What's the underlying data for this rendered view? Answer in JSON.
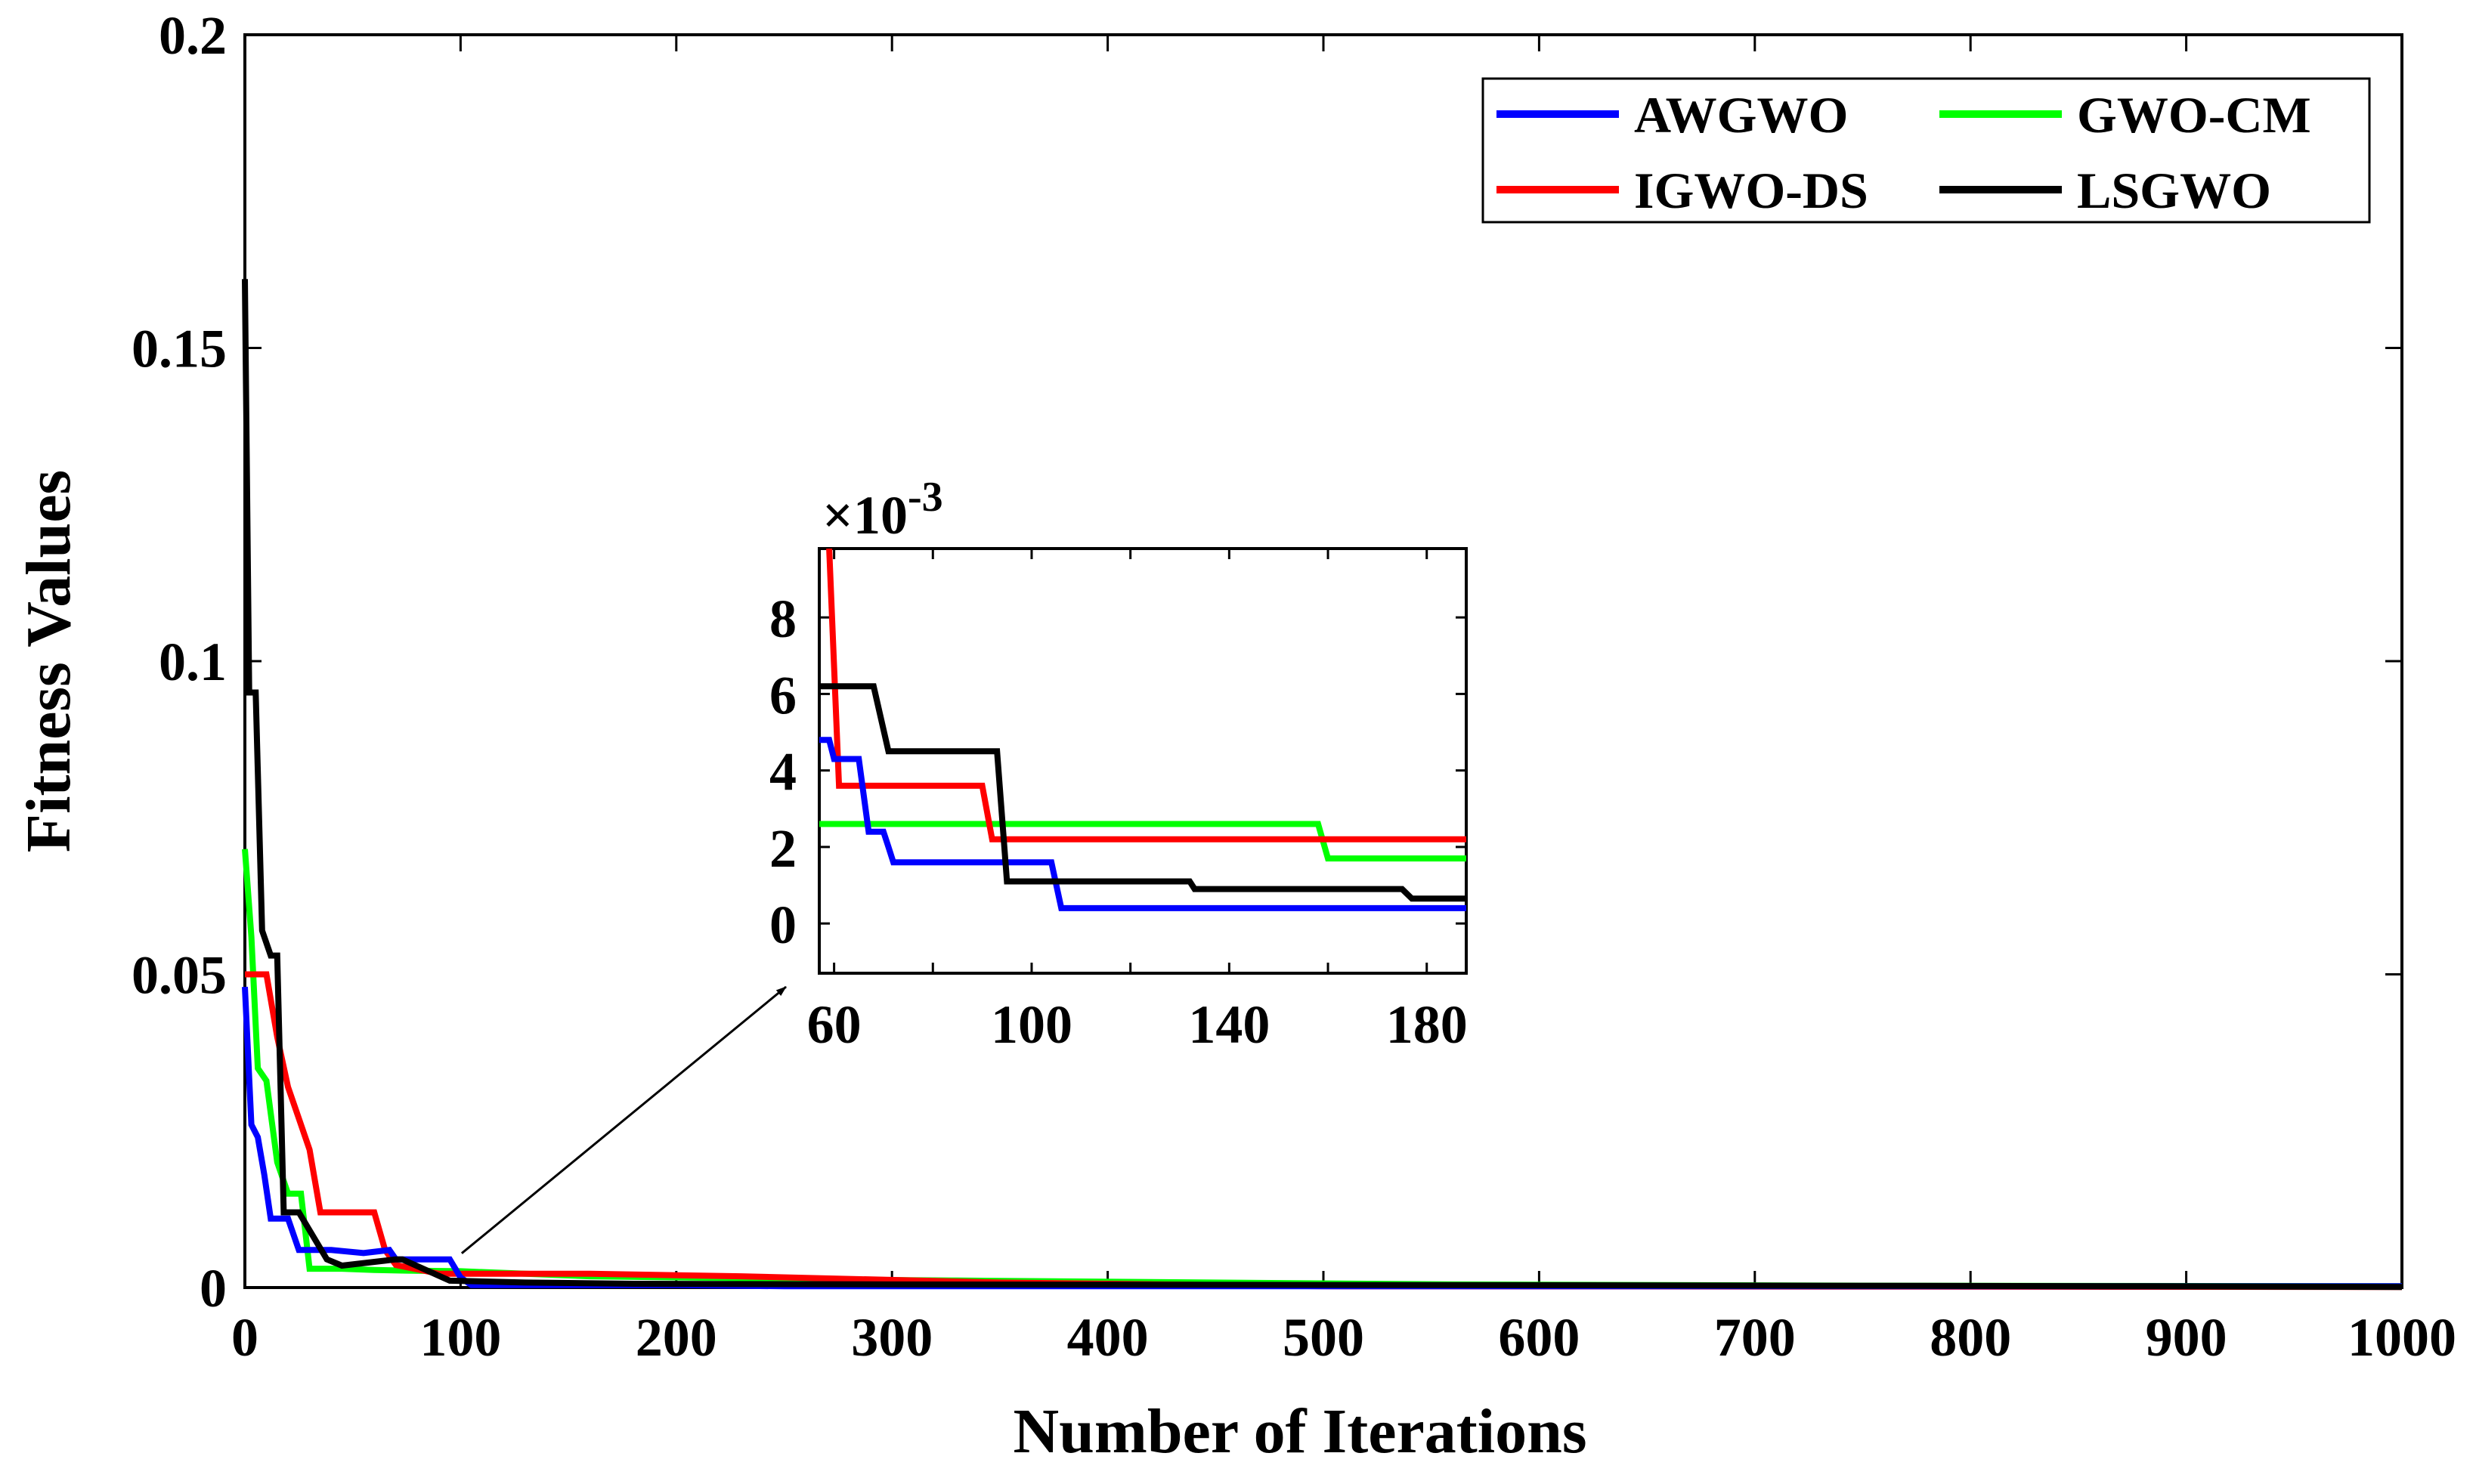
{
  "chart_data": [
    {
      "type": "line",
      "xlabel": "Number of Iterations",
      "ylabel": "Fitness Values",
      "xlim": [
        0,
        1000
      ],
      "ylim": [
        0,
        0.2
      ],
      "x_ticks": [
        0,
        100,
        200,
        300,
        400,
        500,
        600,
        700,
        800,
        900,
        1000
      ],
      "x_tick_labels": [
        "0",
        "100",
        "200",
        "300",
        "400",
        "500",
        "600",
        "700",
        "800",
        "900",
        "1000"
      ],
      "y_ticks": [
        0,
        0.05,
        0.1,
        0.15,
        0.2
      ],
      "y_tick_labels": [
        "0",
        "0.05",
        "0.1",
        "0.15",
        "0.2"
      ],
      "legend_position": "top-right",
      "legend_columns": 2,
      "series": [
        {
          "name": "AWGWO",
          "color": "#0000ff",
          "x": [
            0,
            3,
            6,
            9,
            12,
            20,
            25,
            30,
            40,
            55,
            67,
            70,
            95,
            100,
            105,
            200,
            250,
            1000
          ],
          "y": [
            0.048,
            0.026,
            0.024,
            0.018,
            0.011,
            0.011,
            0.006,
            0.006,
            0.006,
            0.0055,
            0.006,
            0.0045,
            0.0045,
            0.0016,
            0.0004,
            0.0004,
            0.0002,
            0.0002
          ]
        },
        {
          "name": "GWO-CM",
          "color": "#00ff00",
          "x": [
            0,
            3,
            6,
            10,
            15,
            20,
            26,
            30,
            45,
            60,
            75,
            100,
            160,
            300,
            560,
            750,
            1000
          ],
          "y": [
            0.07,
            0.056,
            0.035,
            0.033,
            0.02,
            0.015,
            0.015,
            0.003,
            0.003,
            0.0028,
            0.0027,
            0.0026,
            0.0018,
            0.0012,
            0.0005,
            0.0003,
            0.0002
          ]
        },
        {
          "name": "IGWO-DS",
          "color": "#ff0000",
          "x": [
            0,
            5,
            10,
            15,
            20,
            25,
            30,
            35,
            60,
            65,
            70,
            90,
            160,
            230,
            350,
            500,
            1000
          ],
          "y": [
            0.05,
            0.05,
            0.05,
            0.04,
            0.032,
            0.027,
            0.022,
            0.012,
            0.012,
            0.006,
            0.0036,
            0.0022,
            0.0022,
            0.0018,
            0.0008,
            0.0002,
            0.0001
          ]
        },
        {
          "name": "LSGWO",
          "color": "#000000",
          "x": [
            0,
            2,
            5,
            8,
            12,
            15,
            18,
            25,
            38,
            45,
            70,
            73,
            95,
            130,
            180,
            300,
            550,
            880,
            1000
          ],
          "y": [
            0.161,
            0.095,
            0.095,
            0.057,
            0.053,
            0.053,
            0.012,
            0.012,
            0.0045,
            0.0035,
            0.0045,
            0.0045,
            0.0011,
            0.0008,
            0.0006,
            0.0005,
            0.0004,
            0.0002,
            0.0001
          ]
        }
      ]
    },
    {
      "type": "line",
      "role": "inset-zoom",
      "y_multiplier": "×10",
      "y_multiplier_exponent": "-3",
      "xlim": [
        57,
        188
      ],
      "ylim": [
        -1.3,
        9.8
      ],
      "x_ticks": [
        60,
        100,
        140,
        180
      ],
      "x_tick_labels": [
        "60",
        "100",
        "140",
        "180"
      ],
      "x_minor_ticks": [
        80,
        120,
        160
      ],
      "y_ticks": [
        0,
        2,
        4,
        6,
        8
      ],
      "y_tick_labels": [
        "0",
        "2",
        "4",
        "6",
        "8"
      ],
      "zoom_source": {
        "x": 90,
        "y": 0.0045
      },
      "series": [
        {
          "name": "AWGWO",
          "color": "#0000ff",
          "x": [
            57,
            59,
            60,
            65,
            67,
            70,
            71,
            72,
            95,
            104,
            106,
            188
          ],
          "y": [
            4.8,
            4.8,
            4.3,
            4.3,
            2.4,
            2.4,
            2.0,
            1.6,
            1.6,
            1.6,
            0.4,
            0.4
          ]
        },
        {
          "name": "GWO-CM",
          "color": "#00ff00",
          "x": [
            57,
            158,
            160,
            188
          ],
          "y": [
            2.6,
            2.6,
            1.7,
            1.7
          ]
        },
        {
          "name": "IGWO-DS",
          "color": "#ff0000",
          "x": [
            59,
            61,
            90,
            92,
            188
          ],
          "y": [
            9.8,
            3.6,
            3.6,
            2.2,
            2.2
          ]
        },
        {
          "name": "LSGWO",
          "color": "#000000",
          "x": [
            57,
            68,
            71,
            93,
            95,
            132,
            133,
            175,
            177,
            188
          ],
          "y": [
            6.2,
            6.2,
            4.5,
            4.5,
            1.1,
            1.1,
            0.9,
            0.9,
            0.65,
            0.65
          ]
        }
      ]
    }
  ]
}
